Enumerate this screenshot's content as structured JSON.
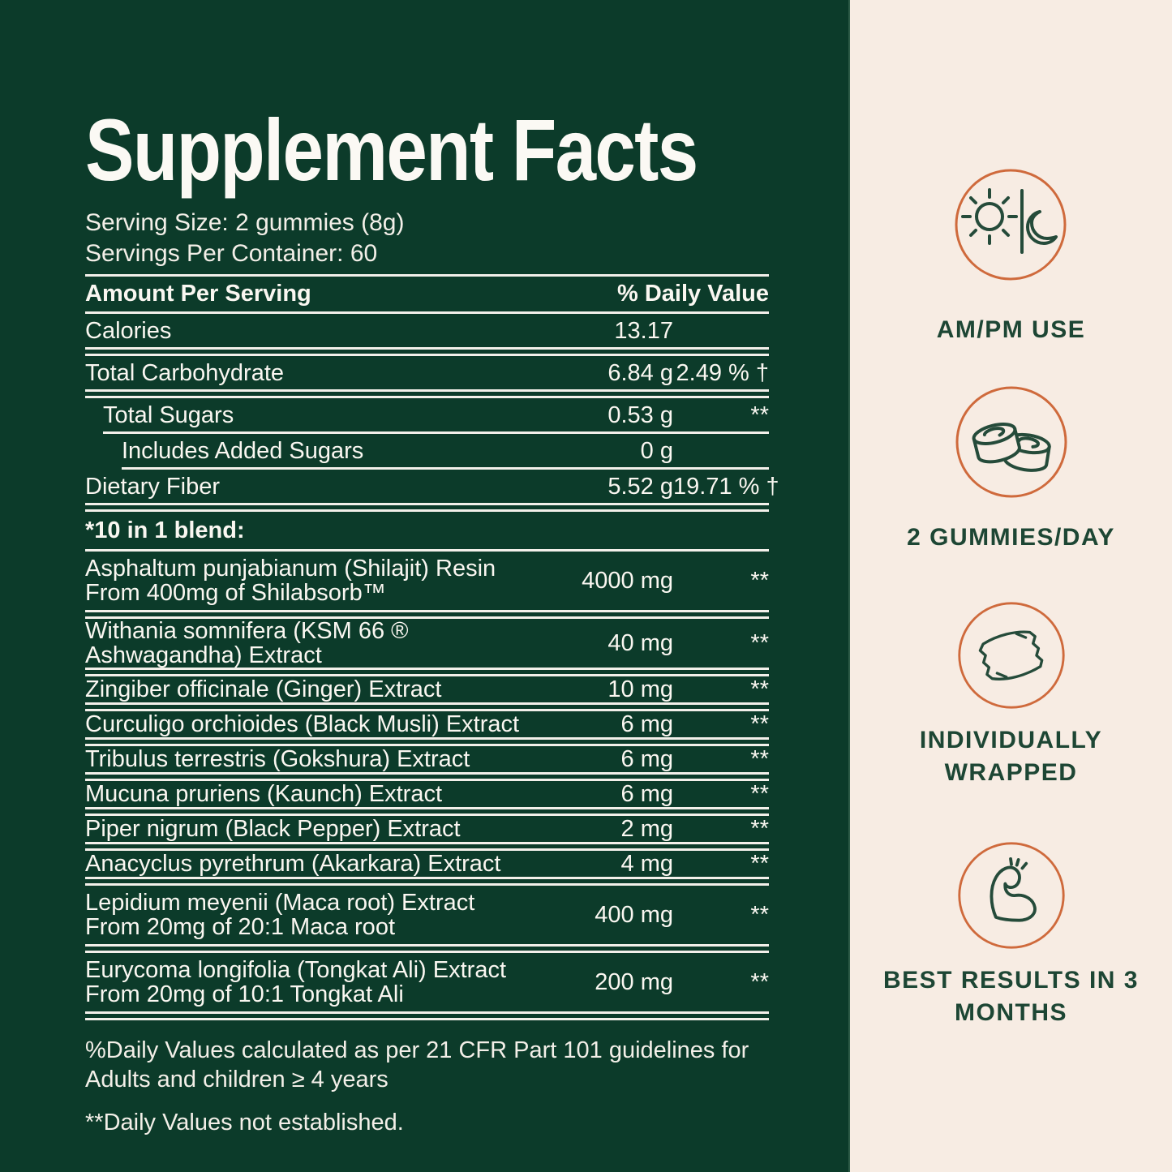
{
  "colors": {
    "panel_green": "#0c3b2a",
    "cream": "#f7ece3",
    "accent_orange": "#cf6a3c",
    "icon_green": "#254b3a",
    "text_green": "#1d4634",
    "line_white": "#f3f0ea"
  },
  "label": {
    "title": "Supplement Facts",
    "serving_size": "Serving Size: 2 gummies (8g)",
    "servings_per_container": "Servings Per Container: 60",
    "table": {
      "amount_header": "Amount Per Serving",
      "dv_header": "% Daily Value",
      "rows": [
        {
          "name": "Calories",
          "amount": "13.17",
          "dv": "",
          "group": "main",
          "sep": "double"
        },
        {
          "name": "Total Carbohydrate",
          "amount": "6.84 g",
          "dv": "2.49 % †",
          "group": "main",
          "sep": "double"
        },
        {
          "name": "Total Sugars",
          "amount": "0.53 g",
          "dv": "**",
          "group": "main",
          "indent": 1,
          "sep": "single i1"
        },
        {
          "name": "Includes Added Sugars",
          "amount": "0 g",
          "dv": "",
          "group": "main",
          "indent": 2,
          "sep": "single i2"
        },
        {
          "name": "Dietary Fiber",
          "amount": "5.52 g",
          "dv": "19.71 % †",
          "group": "main",
          "sep": "double"
        },
        {
          "name": "*10 in 1 blend:",
          "heading": true,
          "sep": "single"
        },
        {
          "name": "Asphaltum punjabianum (Shilajit) Resin",
          "sub": "From 400mg of Shilabsorb™",
          "amount": "4000 mg",
          "dv": "**",
          "group": "blend",
          "sep": "double"
        },
        {
          "name": "Withania somnifera (KSM 66 ® Ashwagandha) Extract",
          "amount": "40 mg",
          "dv": "**",
          "group": "blend",
          "sep": "double"
        },
        {
          "name": "Zingiber officinale (Ginger) Extract",
          "amount": "10 mg",
          "dv": "**",
          "group": "blend",
          "sep": "double"
        },
        {
          "name": "Curculigo orchioides (Black Musli) Extract",
          "amount": "6 mg",
          "dv": "**",
          "group": "blend",
          "sep": "double"
        },
        {
          "name": "Tribulus terrestris (Gokshura) Extract",
          "amount": "6 mg",
          "dv": "**",
          "group": "blend",
          "sep": "double"
        },
        {
          "name": "Mucuna pruriens (Kaunch) Extract",
          "amount": "6 mg",
          "dv": "**",
          "group": "blend",
          "sep": "double"
        },
        {
          "name": "Piper nigrum (Black Pepper) Extract",
          "amount": "2 mg",
          "dv": "**",
          "group": "blend",
          "sep": "double"
        },
        {
          "name": "Anacyclus pyrethrum (Akarkara) Extract",
          "amount": "4 mg",
          "dv": "**",
          "group": "blend",
          "sep": "double"
        },
        {
          "name": "Lepidium meyenii (Maca root) Extract",
          "sub": "From 20mg of 20:1 Maca root",
          "amount": "400 mg",
          "dv": "**",
          "group": "blend",
          "sep": "double"
        },
        {
          "name": "Eurycoma longifolia (Tongkat Ali) Extract",
          "sub": "From 20mg of 10:1 Tongkat Ali",
          "amount": "200 mg",
          "dv": "**",
          "group": "blend",
          "sep": "double"
        }
      ]
    },
    "footnote_daily_values_line1": "%Daily Values calculated as per 21 CFR Part 101 guidelines for",
    "footnote_daily_values_line2": "Adults and children ≥ 4 years",
    "footnote_not_established": "**Daily Values not established."
  },
  "features": [
    {
      "icon": "sun-moon-icon",
      "label": "AM/PM USE"
    },
    {
      "icon": "gummies-icon",
      "label": "2 GUMMIES/DAY"
    },
    {
      "icon": "wrapper-icon",
      "label": "INDIVIDUALLY WRAPPED"
    },
    {
      "icon": "bicep-icon",
      "label": "BEST RESULTS IN 3 MONTHS"
    }
  ]
}
